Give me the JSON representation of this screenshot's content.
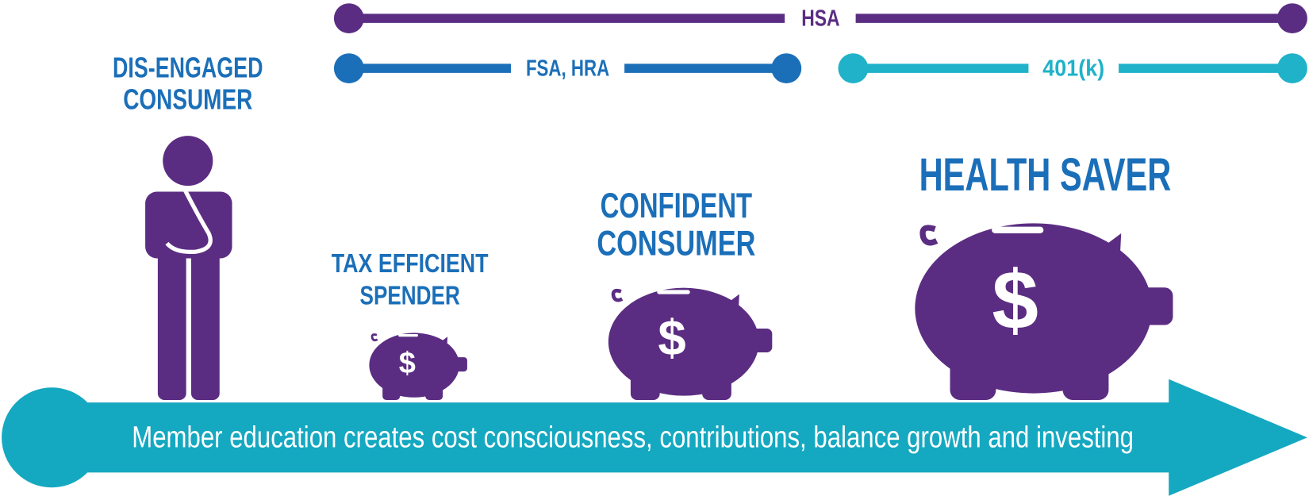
{
  "accounts": [
    {
      "label": "HSA"
    },
    {
      "label": "FSA, HRA"
    },
    {
      "label": "401(k)"
    }
  ],
  "stages": [
    {
      "label": [
        "DIS-ENGAGED",
        "CONSUMER"
      ]
    },
    {
      "label": [
        "TAX EFFICIENT",
        "SPENDER"
      ],
      "icon_text": "$"
    },
    {
      "label": [
        "CONFIDENT",
        "CONSUMER"
      ],
      "icon_text": "$"
    },
    {
      "label": [
        "HEALTH SAVER"
      ],
      "icon_text": "$"
    }
  ],
  "banner": "Member education creates cost consciousness, contributions, balance growth and investing"
}
